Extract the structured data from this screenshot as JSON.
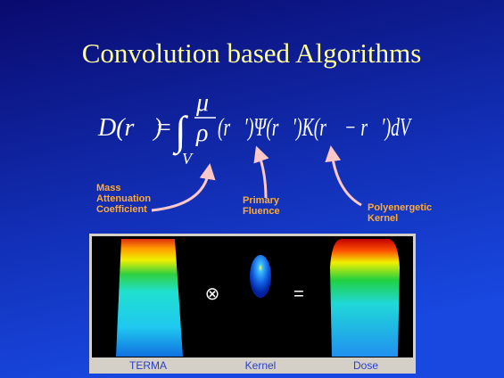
{
  "title": "Convolution based Algorithms",
  "formula": {
    "lhs": "D(r⃗)",
    "equals": "=",
    "integral": "∫",
    "subscript": "V",
    "numerator": "μ",
    "denominator": "ρ",
    "rest": "(r⃗′)Ψ(r⃗′)K(r⃗ − r⃗′)dV"
  },
  "labels": [
    {
      "lines": [
        "Mass",
        "Attenuation",
        "Coefficient"
      ]
    },
    {
      "lines": [
        "Primary",
        "Fluence"
      ]
    },
    {
      "lines": [
        "Polyenergetic",
        "Kernel"
      ]
    }
  ],
  "operators": [
    "⊗",
    "="
  ],
  "captions": [
    "TERMA",
    "Kernel",
    "Dose"
  ]
}
